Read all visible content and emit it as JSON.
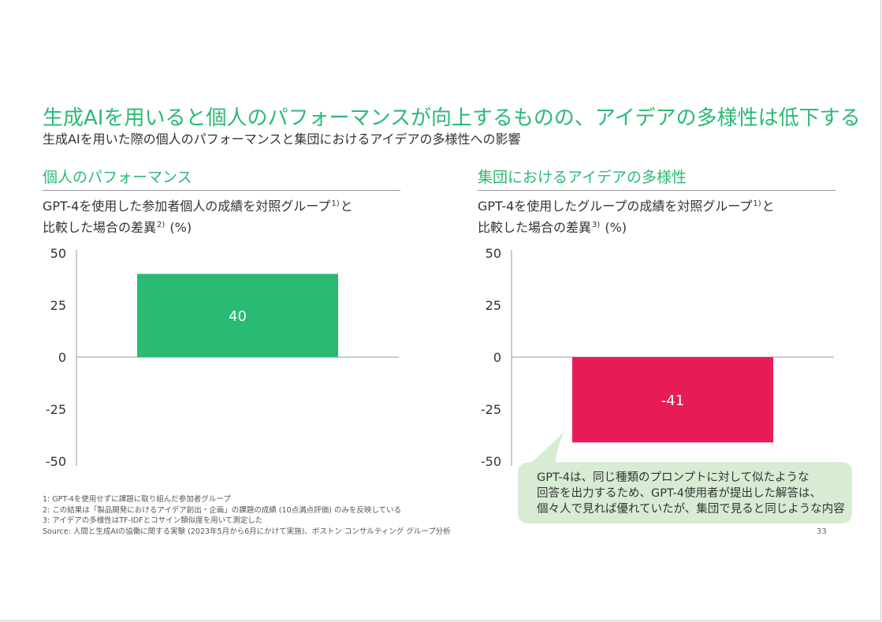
{
  "title": "生成AIを用いると個人のパフォーマンスが向上するものの、アイデアの多様性は低下する",
  "subtitle": "生成AIを用いた際の個人のパフォーマンスと集団におけるアイデアの多様性への影響",
  "sections": {
    "left": {
      "heading": "個人のパフォーマンス",
      "caption_line1_a": "GPT-4を使用した参加者個人の成績を対照グループ",
      "caption_line1_sup": "1)",
      "caption_line1_b": "と",
      "caption_line2_a": "比較した場合の差異",
      "caption_line2_sup": "2)",
      "caption_line2_b": " (%)"
    },
    "right": {
      "heading": "集団におけるアイデアの多様性",
      "caption_line1_a": "GPT-4を使用したグループの成績を対照グループ",
      "caption_line1_sup": "1)",
      "caption_line1_b": "と",
      "caption_line2_a": "比較した場合の差異",
      "caption_line2_sup": "3)",
      "caption_line2_b": " (%)"
    }
  },
  "chart_data": [
    {
      "type": "bar",
      "categories": [
        ""
      ],
      "values": [
        40
      ],
      "data_labels": [
        "40"
      ],
      "ylim": [
        -50,
        50
      ],
      "yticks": [
        50,
        25,
        0,
        -25,
        -50
      ],
      "grid": false,
      "bar_color": "#29ba74"
    },
    {
      "type": "bar",
      "categories": [
        ""
      ],
      "values": [
        -41
      ],
      "data_labels": [
        "-41"
      ],
      "ylim": [
        -50,
        50
      ],
      "yticks": [
        50,
        25,
        0,
        -25,
        -50
      ],
      "grid": false,
      "bar_color": "#e71c57"
    }
  ],
  "callout": {
    "lines": [
      "GPT-4は、同じ種類のプロンプトに対して似たような",
      "回答を出力するため、GPT-4使用者が提出した解答は、",
      "個々人で見れば優れていたが、集団で見ると同じような内容"
    ],
    "bg_color": "#d8ecd4"
  },
  "footnotes": [
    "1: GPT-4を使用せずに課題に取り組んだ参加者グループ",
    "2: この結果は「製品開発におけるアイデア創出・企画」の課題の成績 (10点満点評価) のみを反映している",
    "3: アイデアの多様性はTF-IDFとコサイン類似度を用いて測定した",
    "Source: 人間と生成AIの協働に関する実験 (2023年5月から6月にかけて実施)、ボストン コンサルティング グループ分析"
  ],
  "page_number": "33",
  "colors": {
    "accent": "#29ba74",
    "negative": "#e71c57",
    "axis": "#9a9a9a",
    "text": "#333333"
  }
}
